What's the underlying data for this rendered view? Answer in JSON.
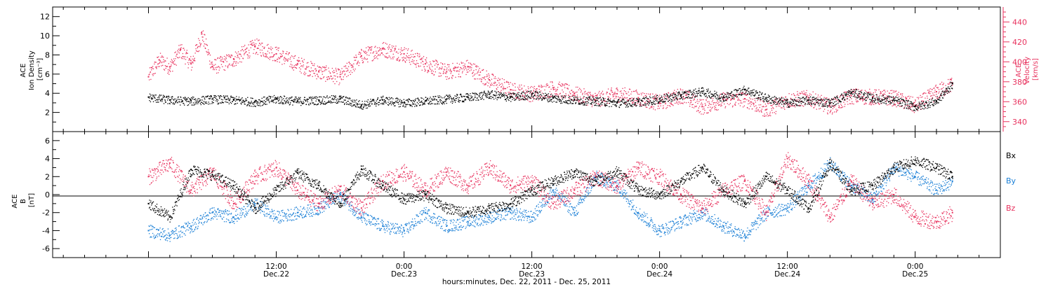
{
  "colors": {
    "black": "#000000",
    "pink": "#e8325e",
    "blue": "#1a7fd6"
  },
  "chart_data": [
    {
      "type": "scatter",
      "panel": "top",
      "left_axis_label_lines": [
        "ACE",
        "Ion Density",
        "[cm⁻³]"
      ],
      "right_axis_label_lines": [
        "ACE",
        "Velocity",
        "[km/s]"
      ],
      "ylim_left": [
        0,
        13
      ],
      "ylim_right": [
        330,
        455
      ],
      "yticks_left": [
        "2",
        "4",
        "6",
        "8",
        "10",
        "12"
      ],
      "yticks_right": [
        "340",
        "360",
        "380",
        "400",
        "420",
        "440"
      ],
      "series": [
        {
          "axis": "left",
          "color": "black",
          "x": [
            0,
            2,
            4,
            6,
            8,
            10,
            12,
            14,
            16,
            18,
            20,
            22,
            24,
            26,
            28,
            30,
            32,
            34,
            36,
            38,
            40,
            42,
            44,
            46,
            48,
            50,
            52,
            54,
            56,
            58,
            60,
            62,
            64,
            66,
            68,
            70,
            72,
            74,
            75.5
          ],
          "y": [
            3.6,
            3.3,
            3.2,
            3.4,
            3.3,
            3.1,
            3.4,
            3.2,
            3.3,
            3.4,
            2.8,
            3.3,
            3.0,
            3.2,
            3.4,
            3.6,
            3.9,
            3.6,
            3.9,
            3.5,
            3.3,
            3.2,
            3.0,
            3.1,
            3.4,
            3.8,
            4.2,
            3.6,
            4.4,
            3.5,
            3.0,
            3.3,
            3.0,
            4.1,
            3.5,
            3.3,
            2.6,
            3.2,
            5.0
          ]
        },
        {
          "axis": "right",
          "color": "pink",
          "x": [
            0,
            1,
            2,
            3,
            4,
            5,
            6,
            8,
            10,
            12,
            14,
            16,
            18,
            20,
            22,
            24,
            26,
            28,
            30,
            32,
            34,
            36,
            38,
            40,
            42,
            44,
            46,
            48,
            50,
            52,
            54,
            56,
            58,
            60,
            62,
            64,
            66,
            68,
            70,
            72,
            74,
            75.5
          ],
          "y": [
            385,
            402,
            395,
            412,
            398,
            428,
            395,
            403,
            416,
            408,
            398,
            390,
            385,
            406,
            413,
            408,
            398,
            390,
            395,
            382,
            372,
            368,
            374,
            368,
            362,
            368,
            364,
            359,
            367,
            355,
            362,
            363,
            352,
            362,
            364,
            355,
            366,
            365,
            364,
            356,
            370,
            378
          ]
        }
      ]
    },
    {
      "type": "scatter",
      "panel": "bottom",
      "left_axis_label_lines": [
        "ACE",
        "B",
        "[nT]"
      ],
      "ylim": [
        -7,
        7
      ],
      "yticks": [
        "-6",
        "-4",
        "-2",
        "0",
        "2",
        "4",
        "6"
      ],
      "xlabel": "hours:minutes, Dec. 22, 2011 - Dec. 25, 2011",
      "xlim_hours": [
        -9,
        80
      ],
      "xticks": [
        {
          "hours": 12,
          "top": "12:00",
          "bottom": "Dec.22"
        },
        {
          "hours": 24,
          "top": "0:00",
          "bottom": "Dec.23"
        },
        {
          "hours": 36,
          "top": "12:00",
          "bottom": "Dec.23"
        },
        {
          "hours": 48,
          "top": "0:00",
          "bottom": "Dec.24"
        },
        {
          "hours": 60,
          "top": "12:00",
          "bottom": "Dec.24"
        },
        {
          "hours": 72,
          "top": "0:00",
          "bottom": "Dec.25"
        }
      ],
      "series": [
        {
          "name": "Bx",
          "color": "black",
          "x": [
            0,
            2,
            4,
            6,
            8,
            10,
            12,
            14,
            16,
            18,
            20,
            22,
            24,
            26,
            28,
            30,
            32,
            34,
            36,
            38,
            40,
            42,
            44,
            46,
            48,
            50,
            52,
            54,
            56,
            58,
            60,
            62,
            64,
            66,
            68,
            70,
            72,
            74,
            75.5
          ],
          "y": [
            -1.0,
            -2.5,
            2.8,
            2.2,
            1.0,
            -1.5,
            0.5,
            2.4,
            1.0,
            -1.0,
            2.8,
            1.0,
            -0.5,
            0.0,
            -1.5,
            -2.0,
            -1.5,
            -1.0,
            0.5,
            1.5,
            2.5,
            1.5,
            2.6,
            0.5,
            0.0,
            1.5,
            3.0,
            0.5,
            -1.0,
            2.0,
            0.5,
            -1.5,
            3.5,
            0.5,
            1.0,
            3.0,
            3.8,
            3.0,
            2.0
          ]
        },
        {
          "name": "By",
          "color": "blue",
          "x": [
            0,
            2,
            4,
            6,
            8,
            10,
            12,
            14,
            16,
            18,
            20,
            22,
            24,
            26,
            28,
            30,
            32,
            34,
            36,
            38,
            40,
            42,
            44,
            46,
            48,
            50,
            52,
            54,
            56,
            58,
            60,
            62,
            64,
            66,
            68,
            70,
            72,
            74,
            75.5
          ],
          "y": [
            -4.0,
            -4.5,
            -3.5,
            -2.0,
            -2.5,
            -1.0,
            -2.5,
            -2.0,
            -1.5,
            0.0,
            -2.5,
            -3.5,
            -4.0,
            -2.0,
            -3.5,
            -3.0,
            -2.5,
            -2.0,
            -2.5,
            0.5,
            -2.0,
            2.0,
            1.0,
            -2.0,
            -4.0,
            -3.0,
            -2.0,
            -3.5,
            -4.5,
            -2.0,
            -1.5,
            1.0,
            3.5,
            1.0,
            -0.5,
            3.0,
            2.0,
            0.5,
            1.5
          ]
        },
        {
          "name": "Bz",
          "color": "pink",
          "x": [
            0,
            2,
            4,
            6,
            8,
            10,
            12,
            14,
            16,
            18,
            20,
            22,
            24,
            26,
            28,
            30,
            32,
            34,
            36,
            38,
            40,
            42,
            44,
            46,
            48,
            50,
            52,
            54,
            56,
            58,
            60,
            62,
            64,
            66,
            68,
            70,
            72,
            74,
            75.5
          ],
          "y": [
            2.0,
            3.5,
            0.5,
            2.5,
            -1.0,
            2.0,
            3.0,
            0.5,
            -1.0,
            0.5,
            -1.5,
            1.5,
            2.5,
            0.5,
            2.5,
            1.0,
            3.0,
            1.0,
            1.5,
            -1.0,
            0.5,
            2.0,
            1.0,
            3.0,
            2.0,
            0.0,
            -1.5,
            0.5,
            1.5,
            -2.0,
            4.0,
            1.5,
            -2.5,
            1.5,
            -1.0,
            0.0,
            -2.5,
            -3.0,
            -2.0
          ]
        }
      ]
    }
  ]
}
